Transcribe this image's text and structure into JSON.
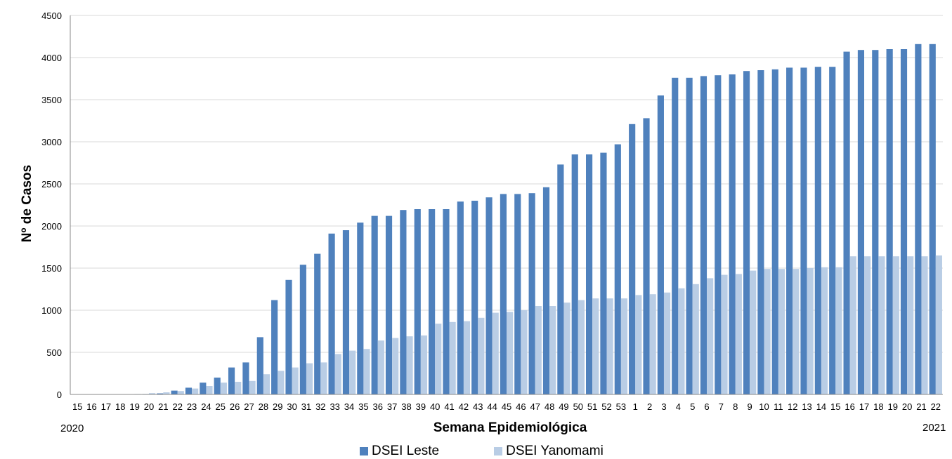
{
  "chart_data": {
    "type": "bar",
    "title": "",
    "xlabel": "Semana Epidemiológica",
    "ylabel": "Nº de Casos",
    "ylim": [
      0,
      4500
    ],
    "yticks": [
      0,
      500,
      1000,
      1500,
      2000,
      2500,
      3000,
      3500,
      4000,
      4500
    ],
    "grid": true,
    "legend_position": "bottom",
    "year_labels": [
      "2020",
      "2021"
    ],
    "categories": [
      "15",
      "16",
      "17",
      "18",
      "19",
      "20",
      "21",
      "22",
      "23",
      "24",
      "25",
      "26",
      "27",
      "28",
      "29",
      "30",
      "31",
      "32",
      "33",
      "34",
      "35",
      "36",
      "37",
      "38",
      "39",
      "40",
      "41",
      "42",
      "43",
      "44",
      "45",
      "46",
      "47",
      "48",
      "49",
      "50",
      "51",
      "52",
      "53",
      "1",
      "2",
      "3",
      "4",
      "5",
      "6",
      "7",
      "8",
      "9",
      "10",
      "11",
      "12",
      "13",
      "14",
      "15",
      "16",
      "17",
      "18",
      "19",
      "20",
      "21",
      "22"
    ],
    "series": [
      {
        "name": "DSEI Leste",
        "color": "#4F81BD",
        "values": [
          0,
          0,
          0,
          0,
          2,
          5,
          12,
          45,
          80,
          140,
          200,
          320,
          380,
          680,
          1120,
          1360,
          1540,
          1670,
          1910,
          1950,
          2040,
          2120,
          2120,
          2190,
          2200,
          2200,
          2200,
          2290,
          2300,
          2340,
          2380,
          2380,
          2390,
          2460,
          2730,
          2850,
          2850,
          2870,
          2970,
          3210,
          3280,
          3550,
          3760,
          3760,
          3780,
          3790,
          3800,
          3840,
          3850,
          3860,
          3880,
          3880,
          3890,
          3890,
          4070,
          4090,
          4090,
          4100,
          4100,
          4160,
          4160
        ]
      },
      {
        "name": "DSEI Yanomami",
        "color": "#B9CDE5",
        "values": [
          0,
          0,
          0,
          0,
          5,
          15,
          25,
          40,
          70,
          100,
          140,
          150,
          160,
          240,
          280,
          320,
          370,
          380,
          480,
          520,
          540,
          640,
          670,
          690,
          700,
          840,
          860,
          870,
          910,
          970,
          980,
          1000,
          1050,
          1050,
          1090,
          1120,
          1140,
          1140,
          1140,
          1180,
          1190,
          1210,
          1260,
          1310,
          1380,
          1420,
          1430,
          1470,
          1490,
          1490,
          1490,
          1500,
          1510,
          1510,
          1640,
          1640,
          1640,
          1640,
          1640,
          1640,
          1650
        ]
      }
    ]
  }
}
